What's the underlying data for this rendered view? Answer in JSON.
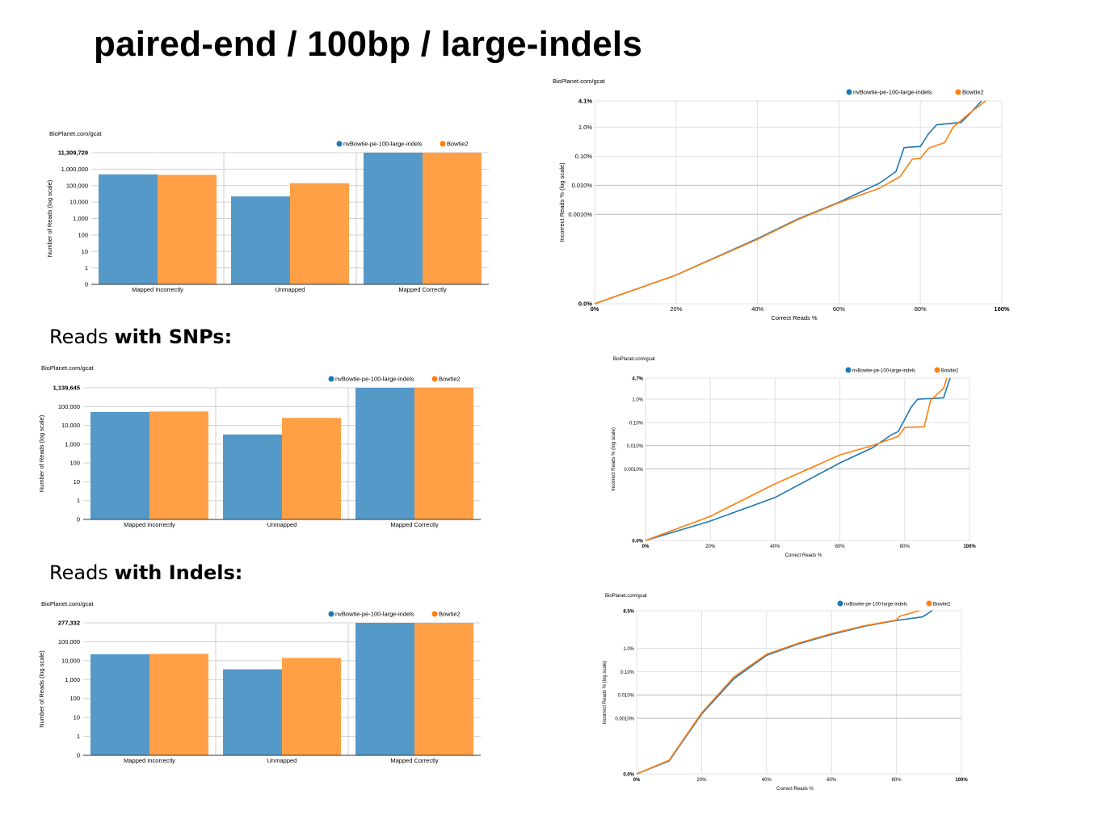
{
  "slide": {
    "title": "paired-end / 100bp / large-indels"
  },
  "headings": {
    "snps": {
      "prefix": "Reads ",
      "bold": "with SNPs:"
    },
    "indels": {
      "prefix": "Reads ",
      "bold": "with Indels:"
    }
  },
  "colors": {
    "series_a": "#1f77b4",
    "series_b": "#ff7f0e",
    "bar_a": "#5599c8",
    "bar_b": "#ff9f46"
  },
  "chart_data": [
    {
      "id": "bar-all",
      "type": "bar",
      "credit": "BioPlanet.com/gcat",
      "ylabel": "Number of Reads (log scale)",
      "yscale": "log",
      "ytick_labels": [
        "11,309,729",
        "1,000,000",
        "100,000",
        "10,000",
        "1,000",
        "100",
        "10",
        "1",
        "0"
      ],
      "categories": [
        "Mapped Incorrectly",
        "Unmapped",
        "Mapped Correctly"
      ],
      "series": [
        {
          "name": "nvBowtie-pe-100-large-indels",
          "values": [
            480000,
            22000,
            11309729
          ]
        },
        {
          "name": "Bowtie2",
          "values": [
            450000,
            140000,
            11309729
          ]
        }
      ]
    },
    {
      "id": "bar-snps",
      "type": "bar",
      "credit": "BioPlanet.com/gcat",
      "ylabel": "Number of Reads (log scale)",
      "yscale": "log",
      "ytick_labels": [
        "1,139,645",
        "100,000",
        "10,000",
        "1,000",
        "100",
        "10",
        "1",
        "0"
      ],
      "categories": [
        "Mapped Incorrectly",
        "Unmapped",
        "Mapped Correctly"
      ],
      "series": [
        {
          "name": "nvBowtie-pe-100-large-indels",
          "values": [
            52000,
            3300,
            1139645
          ]
        },
        {
          "name": "Bowtie2",
          "values": [
            55000,
            25000,
            1139645
          ]
        }
      ]
    },
    {
      "id": "bar-indels",
      "type": "bar",
      "credit": "BioPlanet.com/gcat",
      "ylabel": "Number of Reads (log scale)",
      "yscale": "log",
      "ytick_labels": [
        "277,332",
        "100,000",
        "10,000",
        "1,000",
        "100",
        "10",
        "1",
        "0"
      ],
      "categories": [
        "Mapped Incorrectly",
        "Unmapped",
        "Mapped Correctly"
      ],
      "series": [
        {
          "name": "nvBowtie-pe-100-large-indels",
          "values": [
            22000,
            3500,
            277332
          ]
        },
        {
          "name": "Bowtie2",
          "values": [
            23000,
            14000,
            277332
          ]
        }
      ]
    },
    {
      "id": "line-all",
      "type": "line",
      "credit": "BioPlanet.com/gcat",
      "xlabel": "Correct Reads %",
      "ylabel": "Incorrect Reads % (log scale)",
      "yscale": "log",
      "xtick_labels": [
        "0%",
        "20%",
        "40%",
        "60%",
        "80%",
        "100%"
      ],
      "ytick_labels": [
        "4.1%",
        "1.0%",
        "0.10%",
        "0.010%",
        "0.0010%",
        "0.0%"
      ],
      "series": [
        {
          "name": "nvBowtie-pe-100-large-indels",
          "points": [
            [
              0,
              0
            ],
            [
              20,
              2e-05
            ],
            [
              40,
              0.00021
            ],
            [
              50,
              0.00075
            ],
            [
              60,
              0.0026
            ],
            [
              70,
              0.012
            ],
            [
              74,
              0.03
            ],
            [
              76,
              0.2
            ],
            [
              80,
              0.22
            ],
            [
              82,
              0.6
            ],
            [
              84,
              1.15
            ],
            [
              90,
              1.3
            ],
            [
              92,
              2.0
            ],
            [
              95,
              4.1
            ]
          ]
        },
        {
          "name": "Bowtie2",
          "points": [
            [
              0,
              0
            ],
            [
              20,
              2e-05
            ],
            [
              40,
              0.0002
            ],
            [
              50,
              0.00072
            ],
            [
              60,
              0.0025
            ],
            [
              70,
              0.008
            ],
            [
              75,
              0.02
            ],
            [
              78,
              0.08
            ],
            [
              80,
              0.085
            ],
            [
              82,
              0.19
            ],
            [
              86,
              0.3
            ],
            [
              88,
              1.0
            ],
            [
              92,
              2.1
            ],
            [
              96,
              4.1
            ]
          ]
        }
      ]
    },
    {
      "id": "line-snps",
      "type": "line",
      "credit": "BioPlanet.com/gcat",
      "xlabel": "Correct Reads %",
      "ylabel": "Incorrect Reads % (log scale)",
      "yscale": "log",
      "xtick_labels": [
        "0%",
        "20%",
        "40%",
        "60%",
        "80%",
        "100%"
      ],
      "ytick_labels": [
        "4.7%",
        "1.0%",
        "0.10%",
        "0.010%",
        "0.0010%",
        "0.0%"
      ],
      "series": [
        {
          "name": "nvBowtie-pe-100-large-indels",
          "points": [
            [
              0,
              0
            ],
            [
              20,
              1.5e-05
            ],
            [
              40,
              0.0001
            ],
            [
              60,
              0.0018
            ],
            [
              70,
              0.008
            ],
            [
              76,
              0.03
            ],
            [
              78,
              0.04
            ],
            [
              82,
              0.45
            ],
            [
              84,
              1.0
            ],
            [
              92,
              1.1
            ],
            [
              94,
              4.7
            ]
          ]
        },
        {
          "name": "Bowtie2",
          "points": [
            [
              0,
              0
            ],
            [
              20,
              2.2e-05
            ],
            [
              40,
              0.0003
            ],
            [
              60,
              0.004
            ],
            [
              70,
              0.01
            ],
            [
              76,
              0.02
            ],
            [
              78,
              0.025
            ],
            [
              80,
              0.06
            ],
            [
              86,
              0.065
            ],
            [
              88,
              0.9
            ],
            [
              92,
              2.2
            ],
            [
              93,
              4.7
            ]
          ]
        }
      ]
    },
    {
      "id": "line-indels",
      "type": "line",
      "credit": "BioPlanet.com/gcat",
      "xlabel": "Correct Reads %",
      "ylabel": "Incorrect Reads % (log scale)",
      "yscale": "log",
      "xtick_labels": [
        "0%",
        "20%",
        "40%",
        "60%",
        "80%",
        "100%"
      ],
      "ytick_labels": [
        "8.5%",
        "1.0%",
        "0.10%",
        "0.010%",
        "0.0010%",
        "0.0%"
      ],
      "series": [
        {
          "name": "nvBowtie-pe-100-large-indels",
          "points": [
            [
              0,
              0
            ],
            [
              10,
              1.2e-05
            ],
            [
              20,
              0.0015
            ],
            [
              30,
              0.05
            ],
            [
              40,
              0.5
            ],
            [
              50,
              1.3
            ],
            [
              60,
              2.2
            ],
            [
              70,
              3.5
            ],
            [
              80,
              4.9
            ],
            [
              88,
              6.0
            ],
            [
              91,
              8.5
            ]
          ]
        },
        {
          "name": "Bowtie2",
          "points": [
            [
              0,
              0
            ],
            [
              10,
              1.3e-05
            ],
            [
              20,
              0.0017
            ],
            [
              30,
              0.06
            ],
            [
              40,
              0.55
            ],
            [
              50,
              1.35
            ],
            [
              60,
              2.3
            ],
            [
              70,
              3.6
            ],
            [
              80,
              5.0
            ],
            [
              81,
              6.2
            ],
            [
              87,
              8.5
            ]
          ]
        }
      ]
    }
  ]
}
